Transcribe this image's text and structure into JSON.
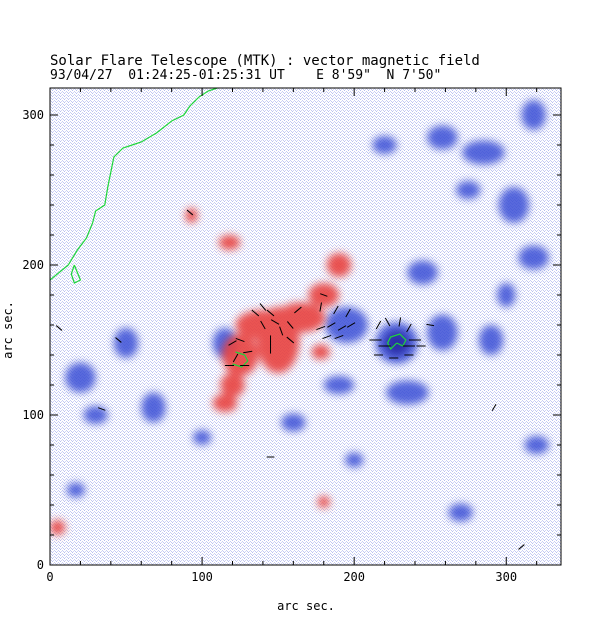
{
  "header": {
    "line1": "Solar Flare Telescope (MTK) : vector magnetic field",
    "line2": "93/04/27  01:24:25-01:25:31 UT    E 8'59\"  N 7'50\""
  },
  "axes": {
    "xlabel": "arc sec.",
    "ylabel": "arc sec.",
    "x_range": [
      0,
      336
    ],
    "y_range": [
      0,
      318
    ],
    "x_ticks": [
      "0",
      "100",
      "200",
      "300"
    ],
    "y_ticks": [
      "0",
      "100",
      "200",
      "300"
    ]
  },
  "colors": {
    "positive_polarity": "#e8433f",
    "negative_polarity": "#3b4fd6",
    "contour": "#1fd63a",
    "vectors": "#000000"
  },
  "positive_regions": [
    {
      "x": 140,
      "y": 160,
      "rx": 18,
      "ry": 10
    },
    {
      "x": 150,
      "y": 150,
      "rx": 14,
      "ry": 22
    },
    {
      "x": 125,
      "y": 140,
      "rx": 12,
      "ry": 14
    },
    {
      "x": 165,
      "y": 165,
      "rx": 16,
      "ry": 10
    },
    {
      "x": 180,
      "y": 180,
      "rx": 10,
      "ry": 8
    },
    {
      "x": 190,
      "y": 200,
      "rx": 8,
      "ry": 8
    },
    {
      "x": 115,
      "y": 108,
      "rx": 8,
      "ry": 6
    },
    {
      "x": 120,
      "y": 120,
      "rx": 8,
      "ry": 8
    },
    {
      "x": 118,
      "y": 215,
      "rx": 7,
      "ry": 5
    },
    {
      "x": 93,
      "y": 233,
      "rx": 4,
      "ry": 5
    },
    {
      "x": 178,
      "y": 142,
      "rx": 6,
      "ry": 5
    },
    {
      "x": 180,
      "y": 42,
      "rx": 4,
      "ry": 4
    },
    {
      "x": 5,
      "y": 25,
      "rx": 5,
      "ry": 5
    }
  ],
  "negative_regions": [
    {
      "x": 228,
      "y": 148,
      "rx": 14,
      "ry": 14
    },
    {
      "x": 195,
      "y": 160,
      "rx": 14,
      "ry": 12
    },
    {
      "x": 115,
      "y": 148,
      "rx": 8,
      "ry": 10
    },
    {
      "x": 235,
      "y": 115,
      "rx": 14,
      "ry": 8
    },
    {
      "x": 190,
      "y": 120,
      "rx": 10,
      "ry": 6
    },
    {
      "x": 258,
      "y": 155,
      "rx": 10,
      "ry": 12
    },
    {
      "x": 245,
      "y": 195,
      "rx": 10,
      "ry": 8
    },
    {
      "x": 285,
      "y": 275,
      "rx": 14,
      "ry": 8
    },
    {
      "x": 258,
      "y": 285,
      "rx": 10,
      "ry": 8
    },
    {
      "x": 305,
      "y": 240,
      "rx": 10,
      "ry": 12
    },
    {
      "x": 318,
      "y": 205,
      "rx": 10,
      "ry": 8
    },
    {
      "x": 275,
      "y": 250,
      "rx": 8,
      "ry": 6
    },
    {
      "x": 50,
      "y": 148,
      "rx": 8,
      "ry": 10
    },
    {
      "x": 20,
      "y": 125,
      "rx": 10,
      "ry": 10
    },
    {
      "x": 68,
      "y": 105,
      "rx": 8,
      "ry": 10
    },
    {
      "x": 30,
      "y": 100,
      "rx": 8,
      "ry": 6
    },
    {
      "x": 290,
      "y": 150,
      "rx": 8,
      "ry": 10
    },
    {
      "x": 160,
      "y": 95,
      "rx": 8,
      "ry": 6
    },
    {
      "x": 200,
      "y": 70,
      "rx": 6,
      "ry": 5
    },
    {
      "x": 318,
      "y": 300,
      "rx": 8,
      "ry": 10
    },
    {
      "x": 17,
      "y": 50,
      "rx": 6,
      "ry": 5
    },
    {
      "x": 270,
      "y": 35,
      "rx": 8,
      "ry": 6
    },
    {
      "x": 300,
      "y": 180,
      "rx": 6,
      "ry": 8
    },
    {
      "x": 320,
      "y": 80,
      "rx": 8,
      "ry": 6
    },
    {
      "x": 220,
      "y": 280,
      "rx": 8,
      "ry": 6
    },
    {
      "x": 100,
      "y": 85,
      "rx": 6,
      "ry": 5
    }
  ],
  "vectors": [
    {
      "x": 120,
      "y": 148,
      "a": 30,
      "l": 6
    },
    {
      "x": 125,
      "y": 150,
      "a": -20,
      "l": 6
    },
    {
      "x": 130,
      "y": 142,
      "a": 10,
      "l": 6
    },
    {
      "x": 122,
      "y": 138,
      "a": 60,
      "l": 6
    },
    {
      "x": 118,
      "y": 133,
      "a": 0,
      "l": 6
    },
    {
      "x": 128,
      "y": 133,
      "a": 0,
      "l": 6
    },
    {
      "x": 135,
      "y": 168,
      "a": -40,
      "l": 6
    },
    {
      "x": 140,
      "y": 172,
      "a": -50,
      "l": 6
    },
    {
      "x": 145,
      "y": 168,
      "a": -40,
      "l": 6
    },
    {
      "x": 148,
      "y": 162,
      "a": -30,
      "l": 6
    },
    {
      "x": 140,
      "y": 160,
      "a": -60,
      "l": 6
    },
    {
      "x": 152,
      "y": 156,
      "a": -70,
      "l": 6
    },
    {
      "x": 158,
      "y": 160,
      "a": -50,
      "l": 6
    },
    {
      "x": 145,
      "y": 150,
      "a": 90,
      "l": 6
    },
    {
      "x": 145,
      "y": 144,
      "a": 90,
      "l": 6
    },
    {
      "x": 158,
      "y": 150,
      "a": -40,
      "l": 6
    },
    {
      "x": 163,
      "y": 170,
      "a": 40,
      "l": 6
    },
    {
      "x": 178,
      "y": 172,
      "a": 80,
      "l": 6
    },
    {
      "x": 188,
      "y": 170,
      "a": 60,
      "l": 6
    },
    {
      "x": 196,
      "y": 168,
      "a": 60,
      "l": 6
    },
    {
      "x": 178,
      "y": 158,
      "a": 20,
      "l": 6
    },
    {
      "x": 185,
      "y": 160,
      "a": 30,
      "l": 6
    },
    {
      "x": 192,
      "y": 158,
      "a": 30,
      "l": 6
    },
    {
      "x": 198,
      "y": 160,
      "a": 30,
      "l": 6
    },
    {
      "x": 182,
      "y": 152,
      "a": 20,
      "l": 6
    },
    {
      "x": 190,
      "y": 152,
      "a": 20,
      "l": 6
    },
    {
      "x": 216,
      "y": 160,
      "a": 60,
      "l": 6
    },
    {
      "x": 222,
      "y": 162,
      "a": -60,
      "l": 6
    },
    {
      "x": 230,
      "y": 162,
      "a": 80,
      "l": 6
    },
    {
      "x": 236,
      "y": 158,
      "a": 60,
      "l": 6
    },
    {
      "x": 214,
      "y": 150,
      "a": 0,
      "l": 8
    },
    {
      "x": 220,
      "y": 146,
      "a": 0,
      "l": 8
    },
    {
      "x": 236,
      "y": 146,
      "a": 0,
      "l": 8
    },
    {
      "x": 240,
      "y": 150,
      "a": 0,
      "l": 8
    },
    {
      "x": 216,
      "y": 140,
      "a": 0,
      "l": 6
    },
    {
      "x": 226,
      "y": 138,
      "a": 0,
      "l": 6
    },
    {
      "x": 236,
      "y": 140,
      "a": 0,
      "l": 6
    },
    {
      "x": 244,
      "y": 146,
      "a": 0,
      "l": 6
    },
    {
      "x": 6,
      "y": 158,
      "a": -40,
      "l": 5
    },
    {
      "x": 45,
      "y": 150,
      "a": -40,
      "l": 5
    },
    {
      "x": 92,
      "y": 235,
      "a": -40,
      "l": 5
    },
    {
      "x": 34,
      "y": 104,
      "a": -20,
      "l": 5
    },
    {
      "x": 145,
      "y": 72,
      "a": 0,
      "l": 5
    },
    {
      "x": 310,
      "y": 12,
      "a": 40,
      "l": 5
    },
    {
      "x": 180,
      "y": 180,
      "a": -20,
      "l": 5
    },
    {
      "x": 250,
      "y": 160,
      "a": -10,
      "l": 5
    },
    {
      "x": 292,
      "y": 105,
      "a": 60,
      "l": 5
    }
  ],
  "contours": [
    [
      [
        0,
        190
      ],
      [
        12,
        200
      ],
      [
        18,
        210
      ],
      [
        24,
        218
      ],
      [
        28,
        228
      ],
      [
        30,
        236
      ],
      [
        36,
        240
      ],
      [
        38,
        252
      ],
      [
        40,
        262
      ],
      [
        42,
        272
      ],
      [
        48,
        278
      ],
      [
        60,
        282
      ],
      [
        70,
        288
      ],
      [
        80,
        296
      ],
      [
        88,
        300
      ],
      [
        92,
        306
      ],
      [
        98,
        312
      ],
      [
        104,
        316
      ],
      [
        110,
        318
      ]
    ],
    [
      [
        16,
        200
      ],
      [
        18,
        195
      ],
      [
        20,
        190
      ],
      [
        16,
        188
      ],
      [
        14,
        194
      ],
      [
        16,
        200
      ]
    ],
    [
      [
        228,
        148
      ],
      [
        232,
        146
      ],
      [
        234,
        150
      ],
      [
        230,
        154
      ],
      [
        224,
        152
      ],
      [
        222,
        148
      ],
      [
        224,
        144
      ],
      [
        228,
        148
      ]
    ],
    [
      [
        122,
        142
      ],
      [
        128,
        140
      ],
      [
        130,
        136
      ],
      [
        126,
        132
      ],
      [
        120,
        134
      ]
    ]
  ]
}
